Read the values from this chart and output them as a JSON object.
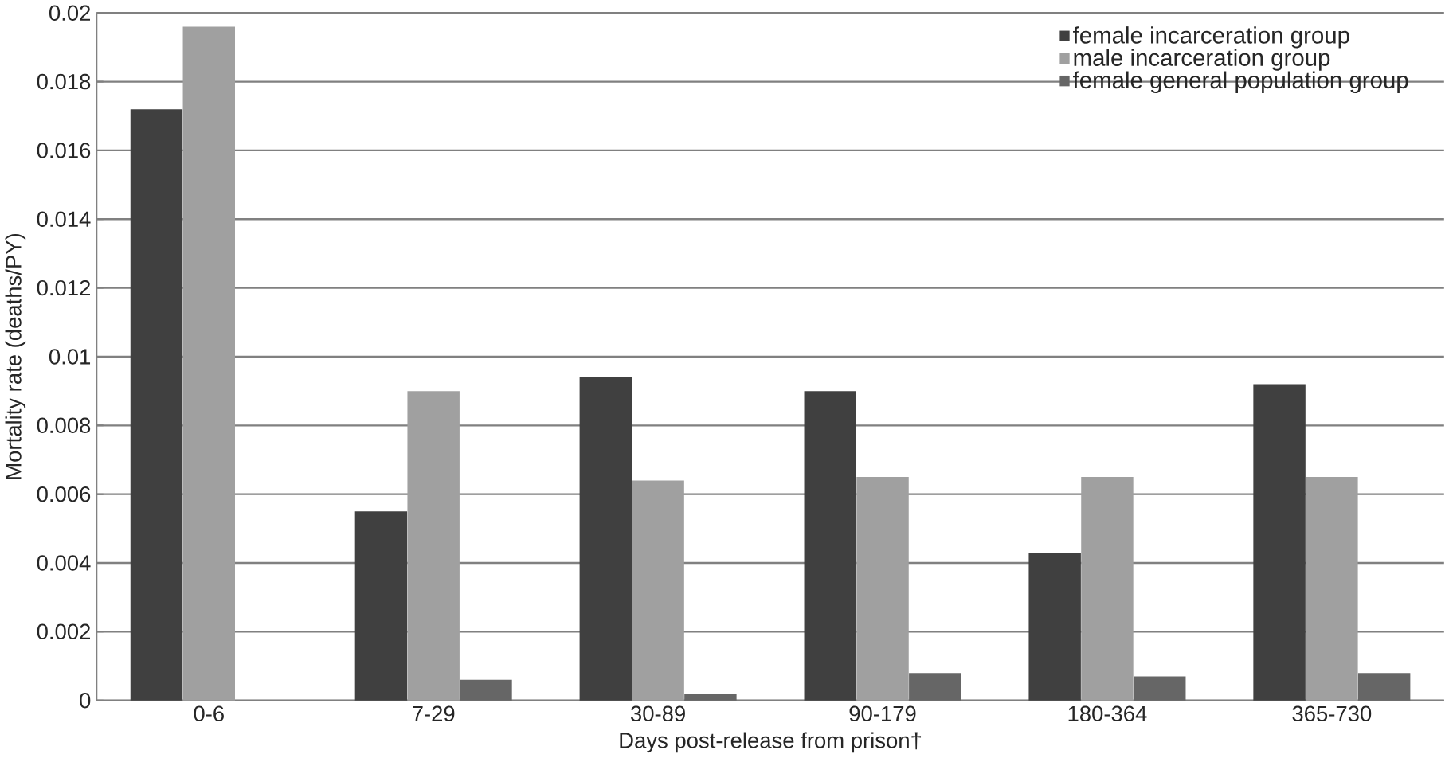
{
  "chart_data": {
    "type": "bar",
    "xlabel": "Days post-release from prison†",
    "ylabel": "Mortality rate (deaths/PY)",
    "categories": [
      "0-6",
      "7-29",
      "30-89",
      "90-179",
      "180-364",
      "365-730"
    ],
    "series": [
      {
        "name": "female incarceration group",
        "color": "#404040",
        "values": [
          0.0172,
          0.0055,
          0.0094,
          0.009,
          0.0043,
          0.0092
        ]
      },
      {
        "name": "male incarceration group",
        "color": "#a0a0a0",
        "values": [
          0.0196,
          0.009,
          0.0064,
          0.0065,
          0.0065,
          0.0065
        ]
      },
      {
        "name": "female general population group",
        "color": "#666666",
        "values": [
          null,
          0.0006,
          0.0002,
          0.0008,
          0.0007,
          0.0008
        ]
      }
    ],
    "ylim": [
      0,
      0.02
    ],
    "yticks": [
      0,
      0.002,
      0.004,
      0.006,
      0.008,
      0.01,
      0.012,
      0.014,
      0.016,
      0.018,
      0.02
    ],
    "grid": "y",
    "legend": "top right"
  }
}
